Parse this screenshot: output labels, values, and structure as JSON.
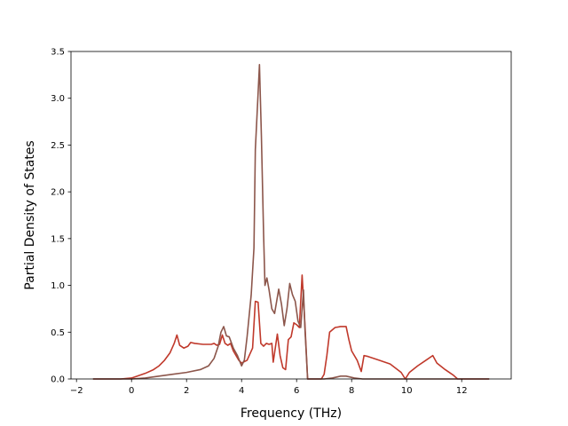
{
  "chart_data": {
    "type": "line",
    "title": "",
    "xlabel": "Frequency (THz)",
    "ylabel": "Partial Density of States",
    "xlim": [
      -2.2,
      13.8
    ],
    "ylim": [
      0,
      3.5
    ],
    "grid": false,
    "legend": "none",
    "xticks": [
      -2,
      0,
      2,
      4,
      6,
      8,
      10,
      12
    ],
    "xtick_labels": [
      "−2",
      "0",
      "2",
      "4",
      "6",
      "8",
      "10",
      "12"
    ],
    "yticks": [
      0,
      0.5,
      1,
      1.5,
      2,
      2.5,
      3,
      3.5
    ],
    "ytick_labels": [
      "0.0",
      "0.5",
      "1.0",
      "1.5",
      "2.0",
      "2.5",
      "3.0",
      "3.5"
    ],
    "series": [
      {
        "color": "#c0392b",
        "points": [
          [
            -1.4,
            0
          ],
          [
            -0.4,
            0
          ],
          [
            0,
            0.01
          ],
          [
            0.2,
            0.03
          ],
          [
            0.5,
            0.06
          ],
          [
            0.8,
            0.1
          ],
          [
            1.0,
            0.14
          ],
          [
            1.2,
            0.2
          ],
          [
            1.4,
            0.28
          ],
          [
            1.55,
            0.38
          ],
          [
            1.65,
            0.47
          ],
          [
            1.75,
            0.36
          ],
          [
            1.9,
            0.33
          ],
          [
            2.05,
            0.35
          ],
          [
            2.15,
            0.39
          ],
          [
            2.3,
            0.38
          ],
          [
            2.6,
            0.37
          ],
          [
            2.9,
            0.37
          ],
          [
            3.0,
            0.38
          ],
          [
            3.1,
            0.36
          ],
          [
            3.2,
            0.37
          ],
          [
            3.3,
            0.47
          ],
          [
            3.4,
            0.38
          ],
          [
            3.5,
            0.36
          ],
          [
            3.6,
            0.38
          ],
          [
            3.7,
            0.3
          ],
          [
            3.9,
            0.2
          ],
          [
            4.0,
            0.17
          ],
          [
            4.2,
            0.2
          ],
          [
            4.4,
            0.33
          ],
          [
            4.5,
            0.83
          ],
          [
            4.6,
            0.82
          ],
          [
            4.7,
            0.38
          ],
          [
            4.8,
            0.35
          ],
          [
            4.9,
            0.38
          ],
          [
            5.0,
            0.37
          ],
          [
            5.1,
            0.38
          ],
          [
            5.15,
            0.18
          ],
          [
            5.3,
            0.48
          ],
          [
            5.4,
            0.25
          ],
          [
            5.5,
            0.12
          ],
          [
            5.6,
            0.1
          ],
          [
            5.7,
            0.42
          ],
          [
            5.8,
            0.45
          ],
          [
            5.9,
            0.6
          ],
          [
            6.0,
            0.58
          ],
          [
            6.1,
            0.55
          ],
          [
            6.2,
            1.11
          ],
          [
            6.3,
            0.6
          ],
          [
            6.4,
            0
          ],
          [
            6.9,
            0
          ],
          [
            7.0,
            0.05
          ],
          [
            7.1,
            0.25
          ],
          [
            7.2,
            0.5
          ],
          [
            7.4,
            0.55
          ],
          [
            7.6,
            0.56
          ],
          [
            7.8,
            0.56
          ],
          [
            7.9,
            0.42
          ],
          [
            8.0,
            0.3
          ],
          [
            8.2,
            0.2
          ],
          [
            8.35,
            0.08
          ],
          [
            8.45,
            0.25
          ],
          [
            8.6,
            0.24
          ],
          [
            9.0,
            0.2
          ],
          [
            9.4,
            0.16
          ],
          [
            9.8,
            0.07
          ],
          [
            9.95,
            0
          ],
          [
            10.1,
            0.07
          ],
          [
            10.4,
            0.14
          ],
          [
            10.7,
            0.2
          ],
          [
            10.95,
            0.25
          ],
          [
            11.1,
            0.17
          ],
          [
            11.4,
            0.1
          ],
          [
            11.7,
            0.04
          ],
          [
            11.85,
            0
          ],
          [
            13.0,
            0
          ]
        ]
      },
      {
        "color": "#8c564b",
        "points": [
          [
            -1.4,
            0
          ],
          [
            0,
            0
          ],
          [
            0.5,
            0.01
          ],
          [
            1.0,
            0.03
          ],
          [
            1.5,
            0.05
          ],
          [
            2.0,
            0.07
          ],
          [
            2.5,
            0.1
          ],
          [
            2.8,
            0.14
          ],
          [
            3.0,
            0.22
          ],
          [
            3.15,
            0.35
          ],
          [
            3.25,
            0.5
          ],
          [
            3.35,
            0.56
          ],
          [
            3.45,
            0.46
          ],
          [
            3.55,
            0.45
          ],
          [
            3.7,
            0.33
          ],
          [
            3.85,
            0.25
          ],
          [
            4.0,
            0.14
          ],
          [
            4.1,
            0.2
          ],
          [
            4.2,
            0.45
          ],
          [
            4.35,
            0.9
          ],
          [
            4.45,
            1.4
          ],
          [
            4.5,
            2.45
          ],
          [
            4.6,
            3.05
          ],
          [
            4.65,
            3.36
          ],
          [
            4.72,
            2.6
          ],
          [
            4.8,
            1.55
          ],
          [
            4.85,
            1.0
          ],
          [
            4.92,
            1.08
          ],
          [
            5.0,
            0.95
          ],
          [
            5.1,
            0.75
          ],
          [
            5.2,
            0.7
          ],
          [
            5.35,
            0.96
          ],
          [
            5.45,
            0.8
          ],
          [
            5.55,
            0.57
          ],
          [
            5.65,
            0.75
          ],
          [
            5.75,
            1.02
          ],
          [
            5.85,
            0.9
          ],
          [
            5.95,
            0.83
          ],
          [
            6.05,
            0.62
          ],
          [
            6.15,
            0.55
          ],
          [
            6.25,
            0.95
          ],
          [
            6.3,
            0.55
          ],
          [
            6.4,
            0
          ],
          [
            7.0,
            0
          ],
          [
            7.3,
            0.01
          ],
          [
            7.6,
            0.03
          ],
          [
            7.8,
            0.03
          ],
          [
            8.1,
            0.01
          ],
          [
            8.4,
            0
          ],
          [
            13.0,
            0
          ]
        ]
      }
    ]
  }
}
